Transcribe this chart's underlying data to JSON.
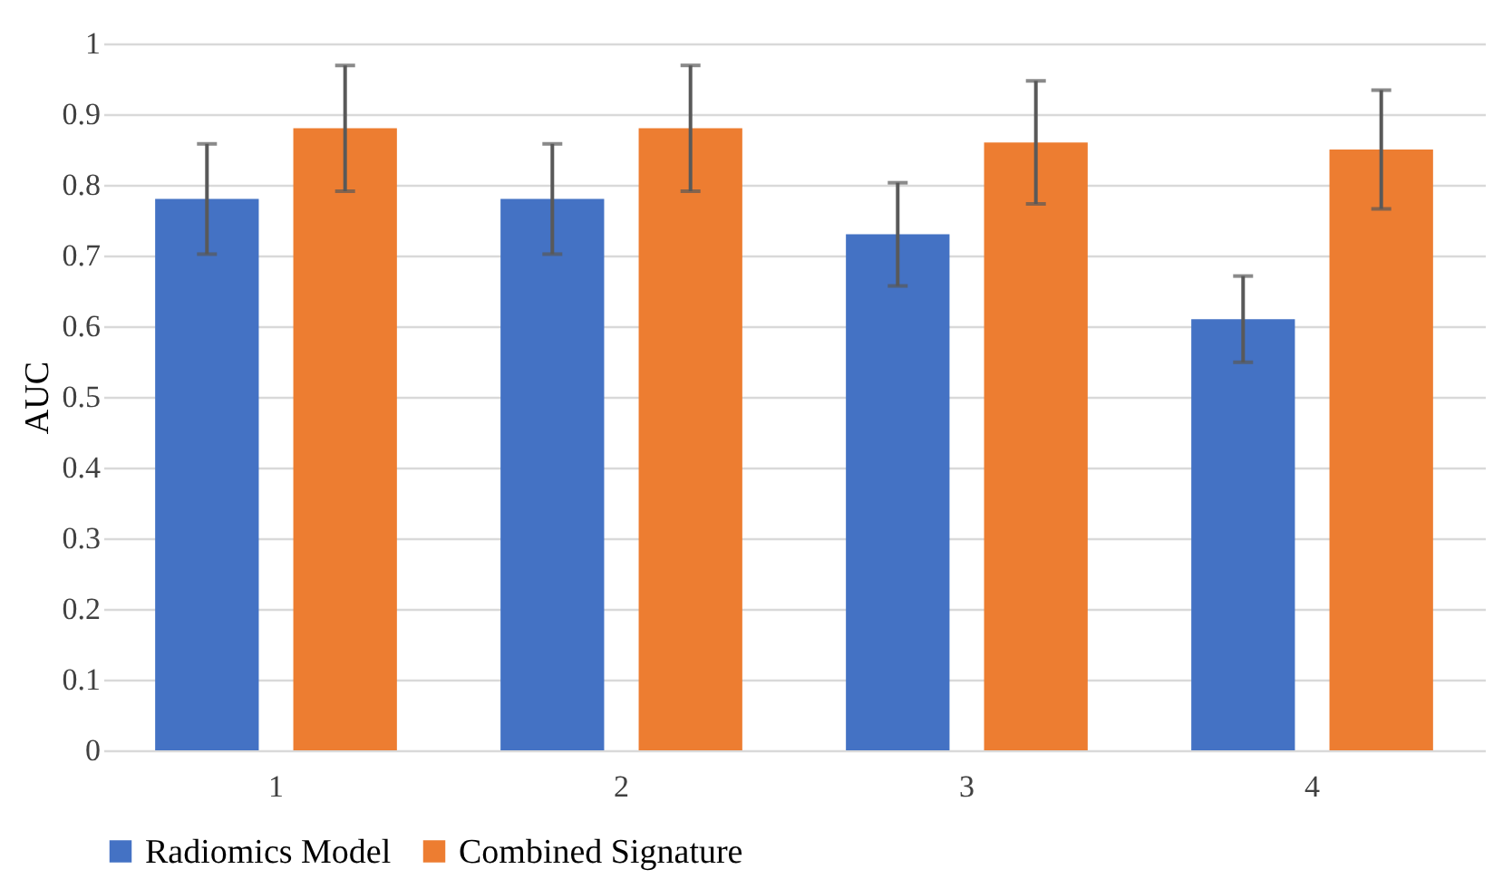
{
  "chart_data": {
    "type": "bar",
    "ylabel": "AUC",
    "categories": [
      "1",
      "2",
      "3",
      "4"
    ],
    "series": [
      {
        "name": "Radiomics Model",
        "color": "#4472c4",
        "values": [
          0.78,
          0.78,
          0.73,
          0.61
        ],
        "errors": [
          0.078,
          0.078,
          0.073,
          0.061
        ]
      },
      {
        "name": "Combined Signature",
        "color": "#ed7d31",
        "values": [
          0.88,
          0.88,
          0.86,
          0.85
        ],
        "errors": [
          0.089,
          0.089,
          0.087,
          0.084
        ]
      }
    ],
    "ylim": [
      0,
      1
    ],
    "yticks": [
      0,
      0.1,
      0.2,
      0.3,
      0.4,
      0.5,
      0.6,
      0.7,
      0.8,
      0.9,
      1
    ],
    "grid": "y",
    "legend": "bottom"
  }
}
